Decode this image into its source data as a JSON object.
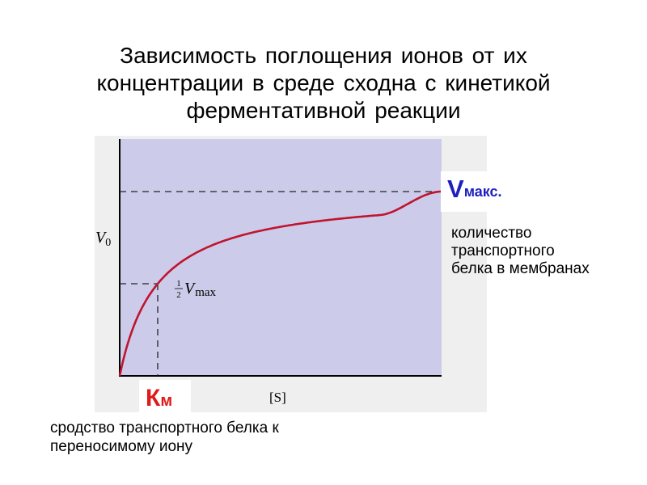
{
  "title": {
    "line1": "Зависимость поглощения ионов от их",
    "line2": "концентрации в среде сходна с кинетикой",
    "line3": "ферментативной реакции"
  },
  "graph": {
    "y_axis_label": "V",
    "y_axis_sub": "0",
    "x_axis_label": "[S]",
    "half_num": "1",
    "half_den": "2",
    "half_v": "V",
    "half_sub": "max",
    "colors": {
      "plot_background": "#ccccea",
      "curve": "#c0142e",
      "axes": "#000000"
    }
  },
  "vmax": {
    "letter": "V",
    "suffix": "макс.",
    "color": "#1f1fc0"
  },
  "km": {
    "letter": "К",
    "suffix": "м",
    "color": "#e01a1a"
  },
  "note_right": {
    "line1": "количество",
    "line2": "транспортного",
    "line3": "белка в мембранах"
  },
  "note_bottom": {
    "line1": "сродство транспортного белка к",
    "line2": "переносимому иону"
  }
}
